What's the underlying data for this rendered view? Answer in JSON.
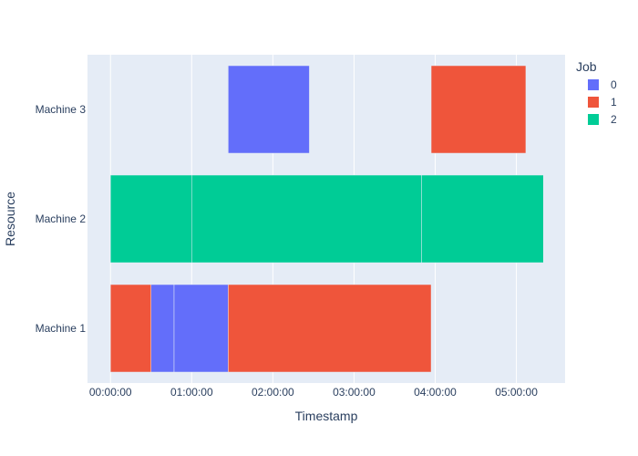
{
  "chart_data": {
    "type": "gantt",
    "title": "",
    "xlabel": "Timestamp",
    "ylabel": "Resource",
    "xlim_minutes": [
      -17,
      336
    ],
    "x_tick_labels": [
      "00:00:00",
      "01:00:00",
      "02:00:00",
      "03:00:00",
      "04:00:00",
      "05:00:00"
    ],
    "categories": [
      "Machine 1",
      "Machine 2",
      "Machine 3"
    ],
    "legend": {
      "title": "Job",
      "position": "top-right",
      "entries": [
        "0",
        "1",
        "2"
      ]
    },
    "colors": {
      "0": "#636efa",
      "1": "#ef553b",
      "2": "#00cc96"
    },
    "grid": true,
    "tasks": [
      {
        "job": "1",
        "resource": "Machine 1",
        "start": "00:00:00",
        "end": "00:30:00"
      },
      {
        "job": "0",
        "resource": "Machine 1",
        "start": "00:30:00",
        "end": "00:47:00"
      },
      {
        "job": "0",
        "resource": "Machine 1",
        "start": "00:47:00",
        "end": "01:27:00"
      },
      {
        "job": "1",
        "resource": "Machine 1",
        "start": "01:27:00",
        "end": "03:57:00"
      },
      {
        "job": "2",
        "resource": "Machine 2",
        "start": "00:00:00",
        "end": "01:00:00"
      },
      {
        "job": "2",
        "resource": "Machine 2",
        "start": "01:00:00",
        "end": "03:50:00"
      },
      {
        "job": "2",
        "resource": "Machine 2",
        "start": "03:50:00",
        "end": "05:20:00"
      },
      {
        "job": "0",
        "resource": "Machine 3",
        "start": "01:27:00",
        "end": "02:27:00"
      },
      {
        "job": "1",
        "resource": "Machine 3",
        "start": "03:57:00",
        "end": "05:07:00"
      }
    ]
  }
}
